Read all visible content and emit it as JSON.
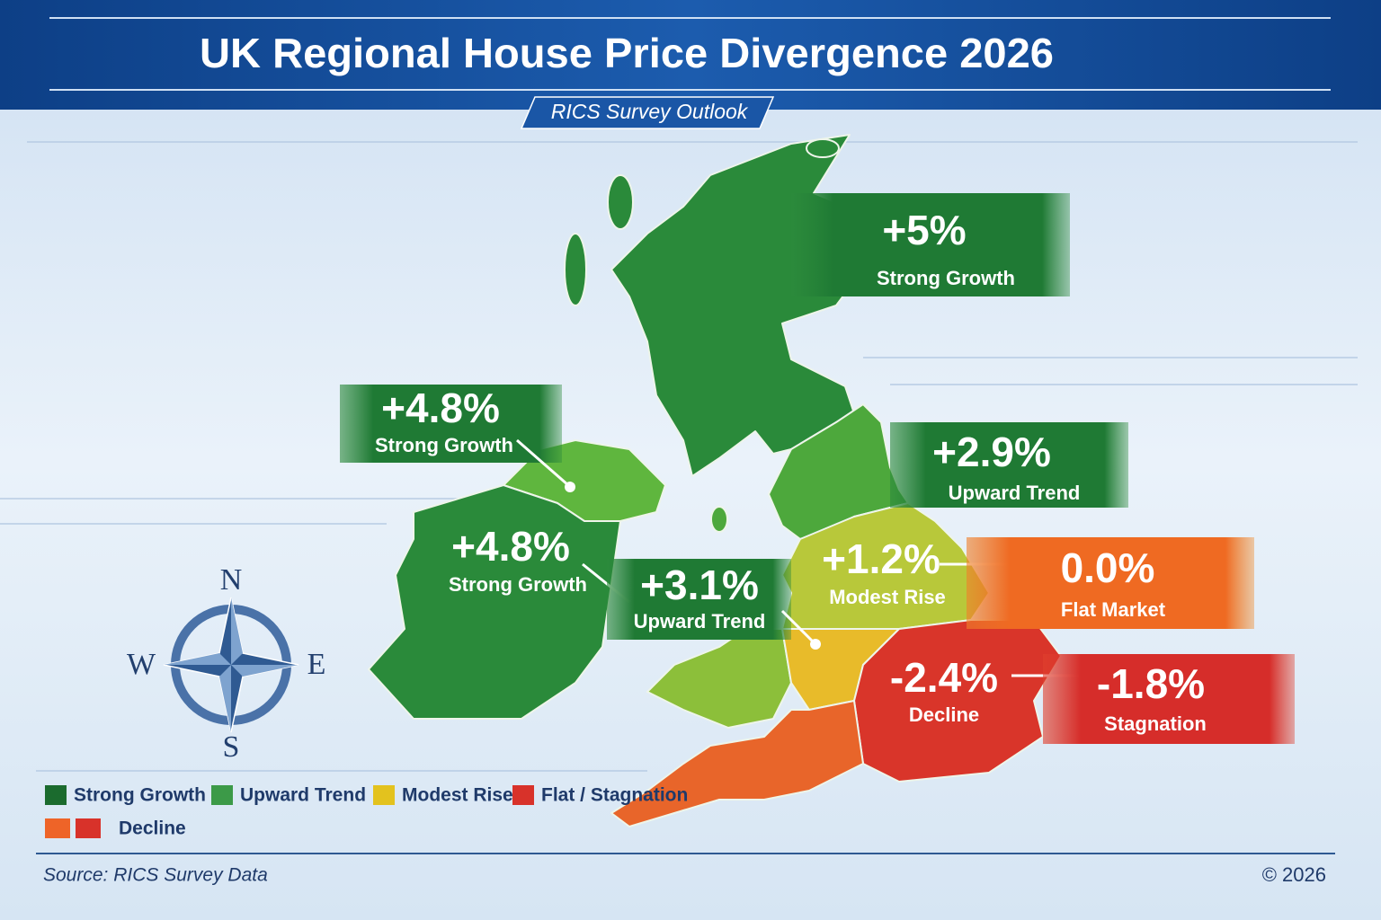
{
  "header": {
    "title": "UK Regional House Price Divergence 2026",
    "subtitle": "RICS Survey Outlook"
  },
  "regions": [
    {
      "value": "+5%",
      "label": "Strong Growth"
    },
    {
      "value": "+4.8%",
      "label": "Strong Growth"
    },
    {
      "value": "+4.8%",
      "label": "Strong Growth"
    },
    {
      "value": "+3.1%",
      "label": "Upward Trend"
    },
    {
      "value": "+2.9%",
      "label": "Upward Trend"
    },
    {
      "value": "+1.2%",
      "label": "Modest Rise"
    },
    {
      "value": "0.0%",
      "label": "Flat Market"
    },
    {
      "value": "-2.4%",
      "label": "Decline"
    },
    {
      "value": "-1.8%",
      "label": "Stagnation"
    }
  ],
  "compass": {
    "n": "N",
    "e": "E",
    "s": "S",
    "w": "W"
  },
  "legend": [
    {
      "label": "Strong Growth",
      "colors": [
        "#1b6b2e"
      ]
    },
    {
      "label": "Upward Trend",
      "colors": [
        "#3c9a48"
      ]
    },
    {
      "label": "Modest Rise",
      "colors": [
        "#e3c21e"
      ]
    },
    {
      "label": "Flat / Stagnation",
      "colors": [
        "#d8322a"
      ]
    },
    {
      "label": "Decline",
      "colors": [
        "#ee6428",
        "#d8322a"
      ]
    }
  ],
  "footer": {
    "source": "Source: RICS Survey Data",
    "copyright": "© 2026"
  }
}
